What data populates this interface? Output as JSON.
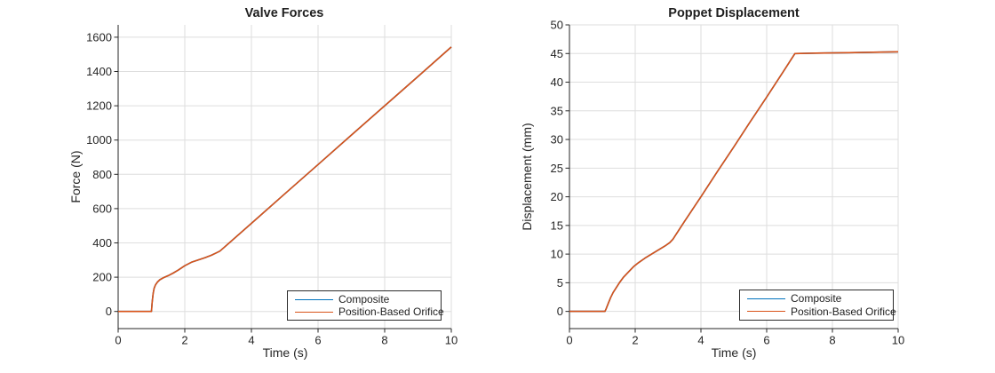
{
  "chart_data": [
    {
      "type": "line",
      "title": "Valve Forces",
      "xlabel": "Time (s)",
      "ylabel": "Force (N)",
      "xlim": [
        0,
        10
      ],
      "ylim": [
        -100,
        1672
      ],
      "xticks": [
        0,
        2,
        4,
        6,
        8,
        10
      ],
      "yticks": [
        0,
        200,
        400,
        600,
        800,
        1000,
        1200,
        1400,
        1600
      ],
      "grid": true,
      "legend_position": "southeast",
      "axis_color": "#262626",
      "grid_color": "#dedede",
      "series": [
        {
          "name": "Composite",
          "color": "#0072BD",
          "x": [
            0,
            0.5,
            1.0,
            1.02,
            1.05,
            1.08,
            1.12,
            1.18,
            1.25,
            1.35,
            1.5,
            1.65,
            1.8,
            2.0,
            2.2,
            2.4,
            2.6,
            2.8,
            2.95,
            3.05,
            3.1,
            4,
            5,
            6,
            7,
            8,
            9,
            10
          ],
          "y": [
            0,
            0,
            0,
            55,
            105,
            135,
            155,
            172,
            185,
            196,
            209,
            224,
            241,
            267,
            287,
            300,
            313,
            328,
            342,
            352,
            360,
            514,
            686,
            857,
            1029,
            1200,
            1371,
            1543
          ]
        },
        {
          "name": "Position-Based Orifice",
          "color": "#D95319",
          "x": [
            0,
            0.5,
            1.0,
            1.02,
            1.05,
            1.08,
            1.12,
            1.18,
            1.25,
            1.35,
            1.5,
            1.65,
            1.8,
            2.0,
            2.2,
            2.4,
            2.6,
            2.8,
            2.95,
            3.05,
            3.1,
            4,
            5,
            6,
            7,
            8,
            9,
            10
          ],
          "y": [
            0,
            0,
            0,
            55,
            105,
            135,
            155,
            172,
            185,
            196,
            209,
            224,
            241,
            267,
            287,
            300,
            313,
            328,
            342,
            352,
            360,
            514,
            686,
            857,
            1029,
            1200,
            1371,
            1543
          ]
        }
      ]
    },
    {
      "type": "line",
      "title": "Poppet Displacement",
      "xlabel": "Time (s)",
      "ylabel": "Displacement (mm)",
      "xlim": [
        0,
        10
      ],
      "ylim": [
        -3,
        50
      ],
      "xticks": [
        0,
        2,
        4,
        6,
        8,
        10
      ],
      "yticks": [
        0,
        5,
        10,
        15,
        20,
        25,
        30,
        35,
        40,
        45,
        50
      ],
      "grid": true,
      "legend_position": "southeast",
      "axis_color": "#262626",
      "grid_color": "#dedede",
      "series": [
        {
          "name": "Composite",
          "color": "#0072BD",
          "x": [
            0,
            0.6,
            1.08,
            1.12,
            1.18,
            1.25,
            1.33,
            1.42,
            1.52,
            1.65,
            1.8,
            1.95,
            2.1,
            2.3,
            2.5,
            2.7,
            2.9,
            3.05,
            3.15,
            3.5,
            4,
            4.5,
            5,
            5.5,
            6,
            6.5,
            6.86,
            7.5,
            8.5,
            10
          ],
          "y": [
            0,
            0,
            0,
            0.5,
            1.4,
            2.4,
            3.3,
            4.1,
            5.0,
            6.0,
            6.9,
            7.8,
            8.5,
            9.3,
            10.0,
            10.7,
            11.4,
            12.0,
            12.6,
            15.7,
            20.0,
            24.4,
            28.7,
            33.1,
            37.4,
            41.8,
            45.0,
            45.07,
            45.15,
            45.3
          ]
        },
        {
          "name": "Position-Based Orifice",
          "color": "#D95319",
          "x": [
            0,
            0.6,
            1.08,
            1.12,
            1.18,
            1.25,
            1.33,
            1.42,
            1.52,
            1.65,
            1.8,
            1.95,
            2.1,
            2.3,
            2.5,
            2.7,
            2.9,
            3.05,
            3.15,
            3.5,
            4,
            4.5,
            5,
            5.5,
            6,
            6.5,
            6.86,
            7.5,
            8.5,
            10
          ],
          "y": [
            0,
            0,
            0,
            0.5,
            1.4,
            2.4,
            3.3,
            4.1,
            5.0,
            6.0,
            6.9,
            7.8,
            8.5,
            9.3,
            10.0,
            10.7,
            11.4,
            12.0,
            12.6,
            15.7,
            20.0,
            24.4,
            28.7,
            33.1,
            37.4,
            41.8,
            45.0,
            45.07,
            45.15,
            45.3
          ]
        }
      ]
    }
  ]
}
